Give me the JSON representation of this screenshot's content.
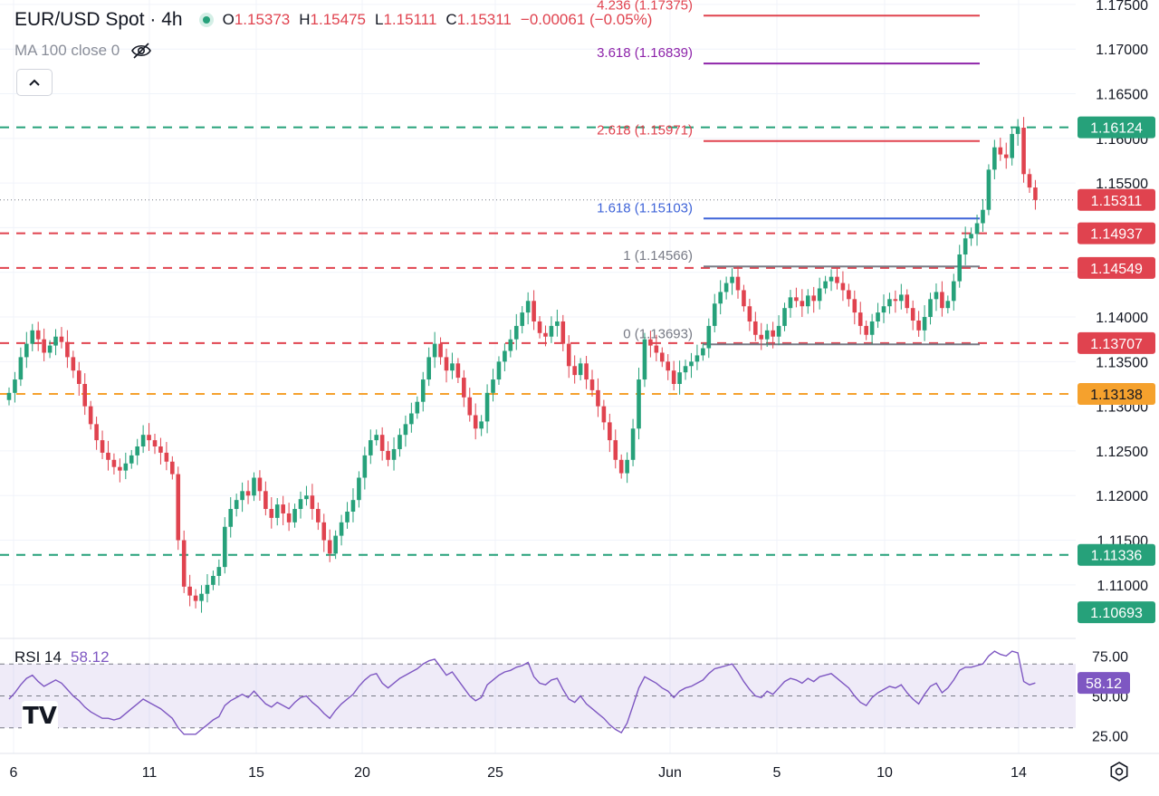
{
  "header": {
    "symbol": "EUR/USD Spot · 4h",
    "ohlc": [
      {
        "k": "O",
        "v": "1.15373"
      },
      {
        "k": "H",
        "v": "1.15475"
      },
      {
        "k": "L",
        "v": "1.15111"
      },
      {
        "k": "C",
        "v": "1.15311"
      }
    ],
    "change": "−0.00061 (−0.05%)",
    "indicator": "MA 100 close 0",
    "hide_icon": "eye-off-icon",
    "collapse_icon": "chevron-up-icon"
  },
  "rsi": {
    "label": "RSI 14",
    "value": "58.12"
  },
  "logo": "TV",
  "settings_icon": "gear-icon",
  "colors": {
    "up": "#26a17a",
    "down": "#e0434f",
    "support": "#e0434f",
    "resistance": "#26a17a",
    "level_orange": "#f5a12d",
    "rsi": "#7e57c2",
    "fib_236": "#e0434f",
    "fib_3618": "#8e24aa",
    "fib_2618": "#e0434f",
    "fib_1618": "#3f64d8",
    "fib_1": "#787b86"
  },
  "chart_data": {
    "type": "candlestick",
    "price_axis": {
      "ylim": [
        1.104,
        1.1755
      ],
      "ticks": [
        "1.17500",
        "1.17000",
        "1.16500",
        "1.16000",
        "1.15500",
        "1.15000",
        "1.14500",
        "1.14000",
        "1.13500",
        "1.13000",
        "1.12500",
        "1.12000",
        "1.11500",
        "1.11000"
      ]
    },
    "time_axis": {
      "ticks": [
        "6",
        "11",
        "15",
        "20",
        "25",
        "Jun",
        "5",
        "10",
        "14"
      ]
    },
    "horizontal_levels": [
      {
        "price": 1.16124,
        "label": "1.16124",
        "style": "dashed",
        "color": "#26a17a"
      },
      {
        "price": 1.14937,
        "label": "1.14937",
        "style": "dashed",
        "color": "#e0434f"
      },
      {
        "price": 1.14549,
        "label": "1.14549",
        "style": "dashed",
        "color": "#e0434f"
      },
      {
        "price": 1.13707,
        "label": "1.13707",
        "style": "dashed",
        "color": "#e0434f"
      },
      {
        "price": 1.13138,
        "label": "1.13138",
        "style": "dashed",
        "color": "#f5a12d"
      },
      {
        "price": 1.11336,
        "label": "1.11336",
        "style": "dashed",
        "color": "#26a17a"
      }
    ],
    "axis_tags": [
      {
        "price": 1.16124,
        "label": "1.16124",
        "color": "#26a17a"
      },
      {
        "price": 1.15311,
        "label": "1.15311",
        "color": "#e0434f"
      },
      {
        "price": 1.14937,
        "label": "1.14937",
        "color": "#e0434f"
      },
      {
        "price": 1.14549,
        "label": "1.14549",
        "color": "#e0434f"
      },
      {
        "price": 1.13707,
        "label": "1.13707",
        "color": "#e0434f"
      },
      {
        "price": 1.13138,
        "label": "1.13138",
        "color": "#f5a12d"
      },
      {
        "price": 1.11336,
        "label": "1.11336",
        "color": "#26a17a"
      },
      {
        "price": 1.10693,
        "label": "1.10693",
        "color": "#26a17a"
      }
    ],
    "fib_levels": [
      {
        "ratio": "4.236",
        "price": 1.17375,
        "label": "4.236 (1.17375)",
        "color": "#e0434f"
      },
      {
        "ratio": "3.618",
        "price": 1.16839,
        "label": "3.618 (1.16839)",
        "color": "#8e24aa"
      },
      {
        "ratio": "2.618",
        "price": 1.15971,
        "label": "2.618 (1.15971)",
        "color": "#e0434f"
      },
      {
        "ratio": "1.618",
        "price": 1.15103,
        "label": "1.618 (1.15103)",
        "color": "#3f64d8"
      },
      {
        "ratio": "1",
        "price": 1.14566,
        "label": "1 (1.14566)",
        "color": "#787b86"
      },
      {
        "ratio": "0",
        "price": 1.13693,
        "label": "0 (1.13693)",
        "color": "#787b86"
      }
    ],
    "close_price": 1.15311,
    "closes": [
      1.1315,
      1.133,
      1.1355,
      1.137,
      1.1385,
      1.1375,
      1.136,
      1.1368,
      1.1378,
      1.1372,
      1.1355,
      1.134,
      1.1325,
      1.13,
      1.128,
      1.1262,
      1.1248,
      1.124,
      1.1232,
      1.1228,
      1.1236,
      1.1245,
      1.1255,
      1.1268,
      1.1262,
      1.1255,
      1.1248,
      1.1238,
      1.1224,
      1.115,
      1.1098,
      1.1088,
      1.1082,
      1.109,
      1.11,
      1.111,
      1.112,
      1.1165,
      1.1185,
      1.1195,
      1.1205,
      1.12,
      1.122,
      1.1205,
      1.1185,
      1.1175,
      1.119,
      1.118,
      1.117,
      1.1185,
      1.1196,
      1.12,
      1.1185,
      1.117,
      1.115,
      1.1135,
      1.1155,
      1.117,
      1.1182,
      1.1195,
      1.122,
      1.1245,
      1.1262,
      1.1268,
      1.125,
      1.124,
      1.1252,
      1.1268,
      1.128,
      1.1292,
      1.1305,
      1.133,
      1.1355,
      1.137,
      1.1355,
      1.134,
      1.1348,
      1.1332,
      1.131,
      1.129,
      1.1275,
      1.1283,
      1.1315,
      1.133,
      1.135,
      1.1362,
      1.1375,
      1.139,
      1.1405,
      1.1418,
      1.1395,
      1.1382,
      1.1378,
      1.139,
      1.1395,
      1.137,
      1.1345,
      1.1335,
      1.1348,
      1.133,
      1.1318,
      1.13,
      1.1282,
      1.1262,
      1.124,
      1.1225,
      1.124,
      1.1275,
      1.133,
      1.1375,
      1.1368,
      1.136,
      1.135,
      1.134,
      1.1325,
      1.1338,
      1.1345,
      1.135,
      1.1357,
      1.1365,
      1.139,
      1.1415,
      1.1428,
      1.1438,
      1.1445,
      1.143,
      1.1412,
      1.1395,
      1.138,
      1.1375,
      1.1385,
      1.1378,
      1.139,
      1.141,
      1.1422,
      1.1418,
      1.1412,
      1.1424,
      1.1418,
      1.1432,
      1.144,
      1.1445,
      1.1438,
      1.143,
      1.142,
      1.1405,
      1.139,
      1.138,
      1.1395,
      1.1405,
      1.1412,
      1.142,
      1.1418,
      1.1425,
      1.141,
      1.1396,
      1.1385,
      1.14,
      1.142,
      1.1428,
      1.141,
      1.1418,
      1.144,
      1.147,
      1.1488,
      1.1493,
      1.1505,
      1.152,
      1.1565,
      1.159,
      1.1582,
      1.1578,
      1.1605,
      1.1612,
      1.156,
      1.1545,
      1.1531
    ],
    "rsi_series": {
      "name": "RSI 14",
      "ylim": [
        14,
        86
      ],
      "ticks": [
        "75.00",
        "50.00",
        "25.00"
      ],
      "band": [
        30,
        70
      ],
      "midline": 50,
      "last": 58.12,
      "values": [
        48,
        52,
        57,
        61,
        63,
        59,
        56,
        58,
        60,
        58,
        54,
        50,
        47,
        43,
        40,
        38,
        36,
        36,
        35,
        36,
        39,
        42,
        45,
        48,
        46,
        44,
        42,
        39,
        36,
        30,
        26,
        26,
        26,
        29,
        32,
        35,
        37,
        44,
        47,
        49,
        51,
        49,
        53,
        49,
        45,
        43,
        46,
        44,
        42,
        46,
        49,
        50,
        46,
        43,
        39,
        36,
        41,
        45,
        48,
        51,
        56,
        60,
        63,
        64,
        58,
        55,
        58,
        61,
        63,
        65,
        67,
        70,
        72,
        73,
        68,
        63,
        65,
        60,
        55,
        50,
        47,
        49,
        57,
        60,
        63,
        65,
        66,
        68,
        69,
        71,
        62,
        58,
        57,
        60,
        61,
        54,
        48,
        46,
        50,
        45,
        42,
        39,
        36,
        32,
        29,
        27,
        33,
        44,
        55,
        62,
        60,
        58,
        55,
        53,
        49,
        53,
        55,
        56,
        58,
        60,
        64,
        67,
        68,
        69,
        70,
        65,
        59,
        54,
        50,
        49,
        53,
        51,
        55,
        59,
        61,
        60,
        58,
        61,
        59,
        62,
        63,
        64,
        61,
        58,
        55,
        50,
        46,
        44,
        49,
        52,
        54,
        56,
        55,
        57,
        52,
        48,
        45,
        51,
        56,
        58,
        52,
        55,
        60,
        66,
        68,
        68,
        69,
        70,
        75,
        78,
        76,
        75,
        78,
        77,
        59,
        57,
        58.12
      ]
    }
  }
}
